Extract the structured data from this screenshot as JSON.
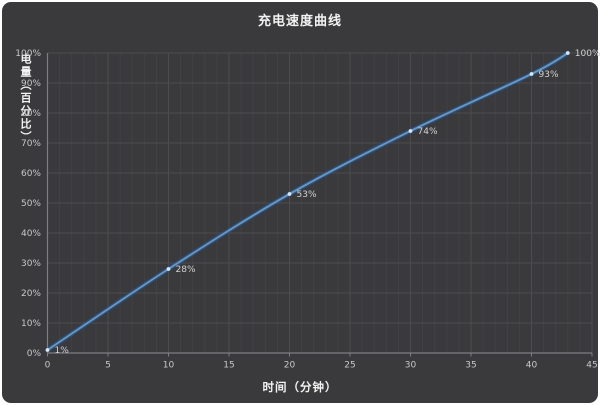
{
  "title": "充电速度曲线",
  "colors": {
    "frame": "#ffffff",
    "card_bg": "#3a3a3c",
    "grid_minor": "#424246",
    "grid_major": "#4c4c50",
    "axis": "#7d7d82",
    "tick_label": "#c7c7ca",
    "data_label": "#d2d2d4",
    "title_color": "#f2f2f2",
    "line": "#5b9bd5",
    "line_glow": "#2f5d96",
    "marker": "#d6e6f5"
  },
  "chart_data": {
    "type": "line",
    "title": "充电速度曲线",
    "xlabel": "时间（分钟）",
    "ylabel": "电量（百分比）",
    "x": [
      0,
      10,
      20,
      30,
      40,
      43
    ],
    "values": [
      1,
      28,
      53,
      74,
      93,
      100
    ],
    "point_labels": [
      "1%",
      "28%",
      "53%",
      "74%",
      "93%",
      "100%"
    ],
    "xlim": [
      0,
      45
    ],
    "ylim": [
      0,
      100
    ],
    "x_ticks": [
      0,
      5,
      10,
      15,
      20,
      25,
      30,
      35,
      40,
      45
    ],
    "x_minor_step": 1,
    "y_ticks": [
      0,
      10,
      20,
      30,
      40,
      50,
      60,
      70,
      80,
      90,
      100
    ],
    "y_tick_labels": [
      "0%",
      "10%",
      "20%",
      "30%",
      "40%",
      "50%",
      "60%",
      "70%",
      "80%",
      "90%",
      "100%"
    ],
    "grid": true,
    "smooth": true,
    "legend_position": "none"
  }
}
